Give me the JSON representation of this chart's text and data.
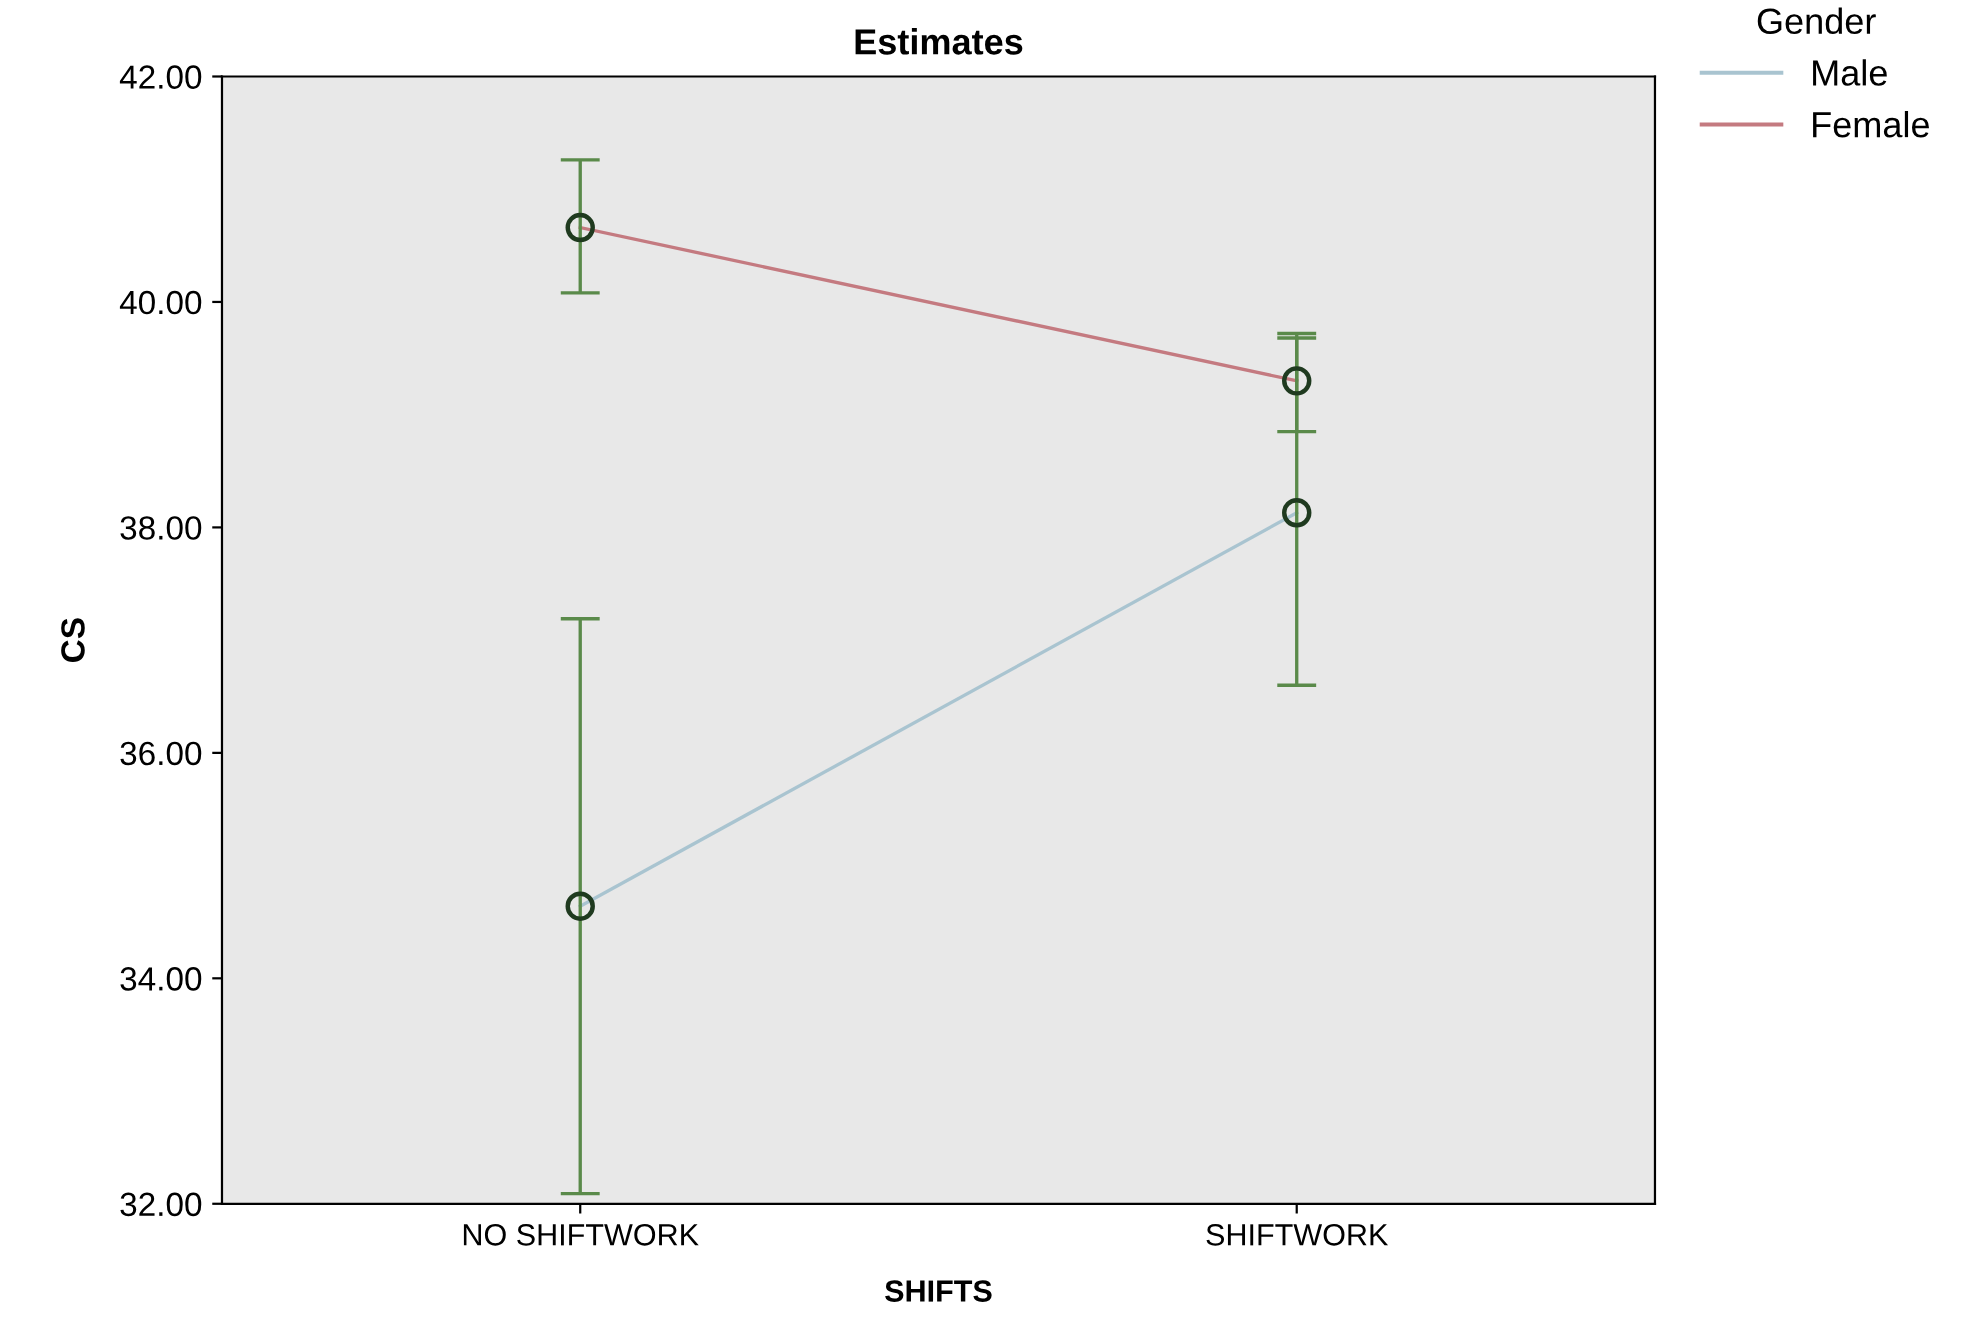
{
  "chart_data": {
    "type": "line",
    "title": "Estimates",
    "xlabel": "SHIFTS",
    "ylabel": "CS",
    "legend_title": "Gender",
    "categories": [
      "NO SHIFTWORK",
      "SHIFTWORK"
    ],
    "series": [
      {
        "name": "Male",
        "color": "#a9c4d0",
        "values": [
          34.64,
          38.13
        ],
        "errors": [
          [
            32.09,
            37.19
          ],
          [
            36.6,
            39.68
          ]
        ]
      },
      {
        "name": "Female",
        "color": "#c47a80",
        "values": [
          40.66,
          39.3
        ],
        "errors": [
          [
            40.08,
            41.26
          ],
          [
            38.85,
            39.72
          ]
        ]
      }
    ],
    "ylim": [
      32,
      42
    ],
    "yticks": [
      {
        "value": 32,
        "label": "32.00"
      },
      {
        "value": 34,
        "label": "34.00"
      },
      {
        "value": 36,
        "label": "36.00"
      },
      {
        "value": 38,
        "label": "38.00"
      },
      {
        "value": 40,
        "label": "40.00"
      },
      {
        "value": 42,
        "label": "42.00"
      }
    ],
    "marker": "circle",
    "grid": false,
    "legend": "top right"
  }
}
